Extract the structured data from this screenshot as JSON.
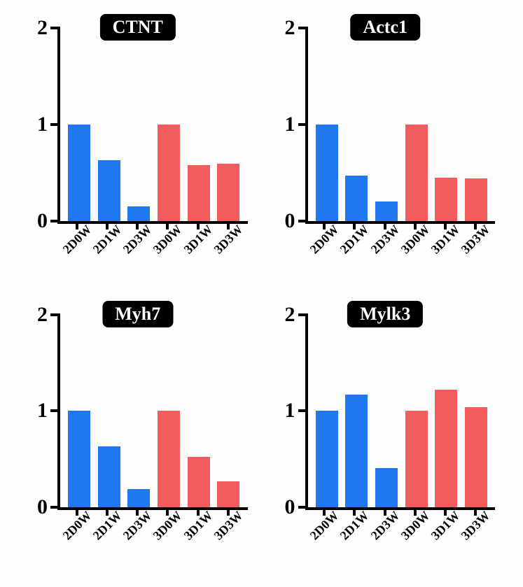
{
  "layout": {
    "rows": 2,
    "cols": 2,
    "background_color": "#fdfdfb"
  },
  "colors": {
    "blue": "#1f78f0",
    "red": "#f25c5c",
    "axis": "#000000",
    "title_bg": "#000000",
    "title_fg": "#ffffff"
  },
  "categories": [
    "2D0W",
    "2D1W",
    "2D3W",
    "3D0W",
    "3D1W",
    "3D3W"
  ],
  "category_colors": [
    "blue",
    "blue",
    "blue",
    "red",
    "red",
    "red"
  ],
  "yaxis": {
    "ticks": [
      0,
      1,
      2
    ],
    "ylim": [
      0,
      2
    ]
  },
  "charts": [
    {
      "title": "CTNT",
      "type": "bar",
      "values": [
        1.0,
        0.63,
        0.15,
        1.0,
        0.58,
        0.59
      ]
    },
    {
      "title": "Actc1",
      "type": "bar",
      "values": [
        1.0,
        0.47,
        0.2,
        1.0,
        0.45,
        0.44
      ]
    },
    {
      "title": "Myh7",
      "type": "bar",
      "values": [
        1.0,
        0.63,
        0.19,
        1.0,
        0.52,
        0.27
      ]
    },
    {
      "title": "Mylk3",
      "type": "bar",
      "values": [
        1.0,
        1.17,
        0.41,
        1.0,
        1.22,
        1.04
      ]
    }
  ],
  "title_fontsize": 26,
  "ylabel_fontsize": 30,
  "xlabel_fontsize": 18
}
